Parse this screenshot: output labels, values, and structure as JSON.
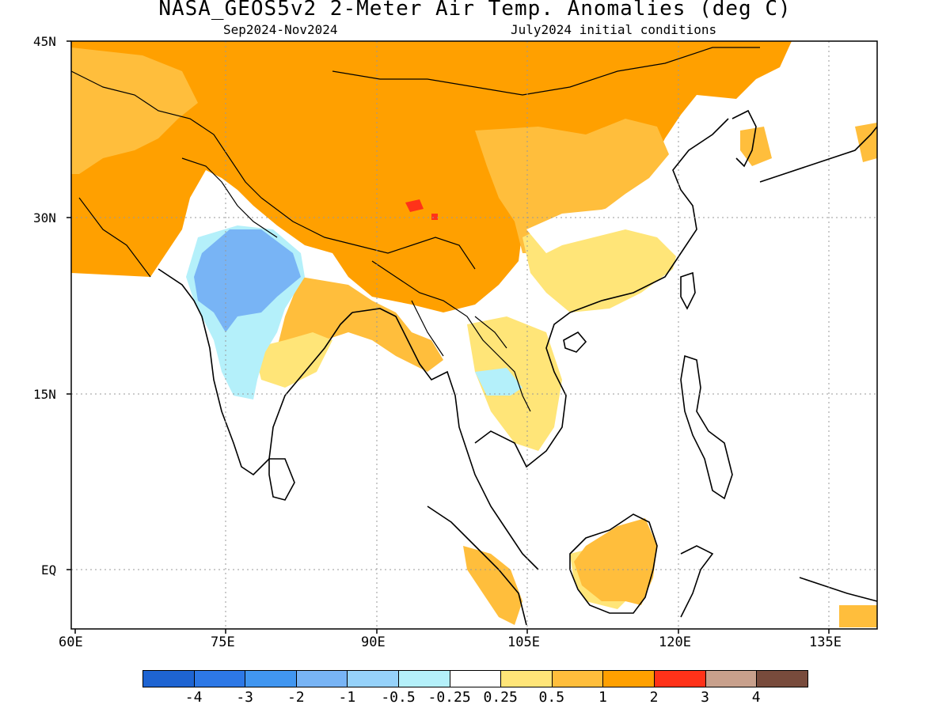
{
  "title": "NASA_GEOS5v2 2-Meter Air Temp. Anomalies (deg C)",
  "subtitle_left": "Sep2024-Nov2024",
  "subtitle_right": "July2024 initial conditions",
  "map": {
    "region": "South and East Asia",
    "lon_range": [
      60,
      140
    ],
    "lat_range": [
      -6,
      45
    ],
    "gridlines": "dotted",
    "lat_ticks": [
      "45N",
      "30N",
      "15N",
      "EQ"
    ],
    "lon_ticks": [
      "60E",
      "75E",
      "90E",
      "105E",
      "120E",
      "135E"
    ]
  },
  "colorbar": {
    "colors": [
      "#1e64d2",
      "#2d78e6",
      "#4196f0",
      "#78b4f5",
      "#96d2fa",
      "#b4f0fa",
      "#ffffff",
      "#ffe578",
      "#ffbe3c",
      "#ffa000",
      "#ff3219",
      "#c8a08c",
      "#784b3c"
    ],
    "labels": [
      "-4",
      "-3",
      "-2",
      "-1",
      "-0.5",
      "-0.25",
      "0.25",
      "0.5",
      "1",
      "2",
      "3",
      "4"
    ]
  }
}
